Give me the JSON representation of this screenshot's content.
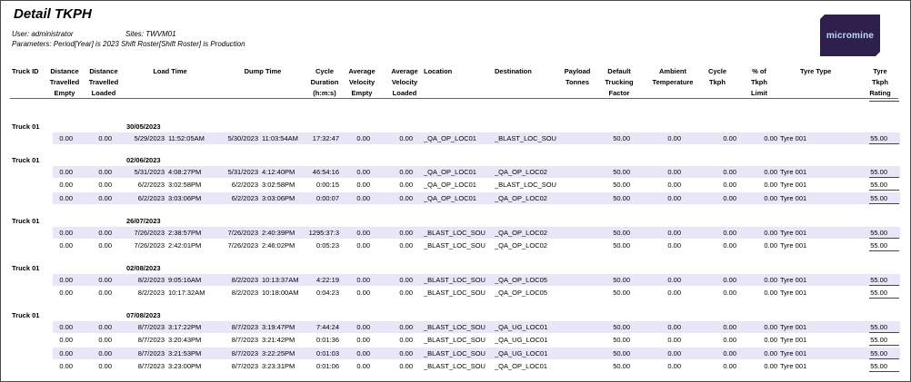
{
  "report": {
    "title": "Detail TKPH",
    "user": "User: administrator",
    "sites": "Sites: TWVM01",
    "parameters": "Parameters: Period[Year] is 2023 Shift Roster[Shift Roster] is Production",
    "logo_text": "micromine"
  },
  "columns": [
    {
      "key": "truck",
      "label": "Truck ID"
    },
    {
      "key": "dist_empty",
      "label": "Distance\nTravelled\nEmpty"
    },
    {
      "key": "dist_loaded",
      "label": "Distance\nTravelled\nLoaded"
    },
    {
      "key": "load_time",
      "label": "Load Time"
    },
    {
      "key": "dump_time",
      "label": "Dump Time"
    },
    {
      "key": "cycle_duration",
      "label": "Cycle\nDuration\n(h:m:s)"
    },
    {
      "key": "avg_vel_empty",
      "label": "Average\nVelocity\nEmpty"
    },
    {
      "key": "avg_vel_loaded",
      "label": "Average\nVelocity\nLoaded"
    },
    {
      "key": "location",
      "label": "Location"
    },
    {
      "key": "destination",
      "label": "Destination"
    },
    {
      "key": "payload",
      "label": "Payload\nTonnes"
    },
    {
      "key": "default_factor",
      "label": "Default\nTrucking\nFactor"
    },
    {
      "key": "ambient",
      "label": "Ambient\nTemperature"
    },
    {
      "key": "cycle_tkph",
      "label": "Cycle\nTkph"
    },
    {
      "key": "pct_limit",
      "label": "% of\nTkph\nLimit"
    },
    {
      "key": "tyre_type",
      "label": "Tyre Type"
    },
    {
      "key": "tyre_rating",
      "label": "Tyre\nTkph\nRating"
    }
  ],
  "groups": [
    {
      "truck": "Truck 01",
      "date": "30/05/2023",
      "rows": [
        {
          "de": "0.00",
          "dl": "0.00",
          "ld": "5/29/2023",
          "lt": "11:52:05AM",
          "dd": "5/30/2023",
          "dt": "11:03:54AM",
          "cd": "17:32:47",
          "ve": "0.00",
          "vl": "0.00",
          "loc": "_QA_OP_LOC01",
          "dest": "_BLAST_LOC_SOU",
          "pt": "",
          "tf": "50.00",
          "at": "0.00",
          "ct": "0.00",
          "pl": "0.00",
          "tt": "Tyre 001",
          "tr": "55.00"
        }
      ]
    },
    {
      "truck": "Truck 01",
      "date": "02/06/2023",
      "rows": [
        {
          "de": "0.00",
          "dl": "0.00",
          "ld": "5/31/2023",
          "lt": "4:08:27PM",
          "dd": "5/31/2023",
          "dt": "4:12:40PM",
          "cd": "46:54:16",
          "ve": "0.00",
          "vl": "0.00",
          "loc": "_QA_OP_LOC01",
          "dest": "_QA_OP_LOC02",
          "pt": "",
          "tf": "50.00",
          "at": "0.00",
          "ct": "0.00",
          "pl": "0.00",
          "tt": "Tyre 001",
          "tr": "55.00"
        },
        {
          "de": "0.00",
          "dl": "0.00",
          "ld": "6/2/2023",
          "lt": "3:02:58PM",
          "dd": "6/2/2023",
          "dt": "3:02:58PM",
          "cd": "0:00:15",
          "ve": "0.00",
          "vl": "0.00",
          "loc": "_QA_OP_LOC01",
          "dest": "_BLAST_LOC_SOU",
          "pt": "",
          "tf": "50.00",
          "at": "0.00",
          "ct": "0.00",
          "pl": "0.00",
          "tt": "Tyre 001",
          "tr": "55.00"
        },
        {
          "de": "0.00",
          "dl": "0.00",
          "ld": "6/2/2023",
          "lt": "3:03:06PM",
          "dd": "6/2/2023",
          "dt": "3:03:06PM",
          "cd": "0:00:07",
          "ve": "0.00",
          "vl": "0.00",
          "loc": "_QA_OP_LOC01",
          "dest": "_QA_OP_LOC02",
          "pt": "",
          "tf": "50.00",
          "at": "0.00",
          "ct": "0.00",
          "pl": "0.00",
          "tt": "Tyre 001",
          "tr": "55.00"
        }
      ]
    },
    {
      "truck": "Truck 01",
      "date": "26/07/2023",
      "rows": [
        {
          "de": "0.00",
          "dl": "0.00",
          "ld": "7/26/2023",
          "lt": "2:38:57PM",
          "dd": "7/26/2023",
          "dt": "2:40:39PM",
          "cd": "1295:37:3",
          "ve": "0.00",
          "vl": "0.00",
          "loc": "_BLAST_LOC_SOU",
          "dest": "_QA_OP_LOC02",
          "pt": "",
          "tf": "50.00",
          "at": "0.00",
          "ct": "0.00",
          "pl": "0.00",
          "tt": "Tyre 001",
          "tr": "55.00"
        },
        {
          "de": "0.00",
          "dl": "0.00",
          "ld": "7/26/2023",
          "lt": "2:42:01PM",
          "dd": "7/26/2023",
          "dt": "2:46:02PM",
          "cd": "0:05:23",
          "ve": "0.00",
          "vl": "0.00",
          "loc": "_BLAST_LOC_SOU",
          "dest": "_QA_OP_LOC02",
          "pt": "",
          "tf": "50.00",
          "at": "0.00",
          "ct": "0.00",
          "pl": "0.00",
          "tt": "Tyre 001",
          "tr": "55.00"
        }
      ]
    },
    {
      "truck": "Truck 01",
      "date": "02/08/2023",
      "rows": [
        {
          "de": "0.00",
          "dl": "0.00",
          "ld": "8/2/2023",
          "lt": "9:05:16AM",
          "dd": "8/2/2023",
          "dt": "10:13:37AM",
          "cd": "4:22:19",
          "ve": "0.00",
          "vl": "0.00",
          "loc": "_BLAST_LOC_SOU",
          "dest": "_QA_OP_LOC05",
          "pt": "",
          "tf": "50.00",
          "at": "0.00",
          "ct": "0.00",
          "pl": "0.00",
          "tt": "Tyre 001",
          "tr": "55.00"
        },
        {
          "de": "0.00",
          "dl": "0.00",
          "ld": "8/2/2023",
          "lt": "10:17:32AM",
          "dd": "8/2/2023",
          "dt": "10:18:00AM",
          "cd": "0:04:23",
          "ve": "0.00",
          "vl": "0.00",
          "loc": "_BLAST_LOC_SOU",
          "dest": "_QA_OP_LOC05",
          "pt": "",
          "tf": "50.00",
          "at": "0.00",
          "ct": "0.00",
          "pl": "0.00",
          "tt": "Tyre 001",
          "tr": "55.00"
        }
      ]
    },
    {
      "truck": "Truck 01",
      "date": "07/08/2023",
      "rows": [
        {
          "de": "0.00",
          "dl": "0.00",
          "ld": "8/7/2023",
          "lt": "3:17:22PM",
          "dd": "8/7/2023",
          "dt": "3:19:47PM",
          "cd": "7:44:24",
          "ve": "0.00",
          "vl": "0.00",
          "loc": "_BLAST_LOC_SOU",
          "dest": "_QA_UG_LOC01",
          "pt": "",
          "tf": "50.00",
          "at": "0.00",
          "ct": "0.00",
          "pl": "0.00",
          "tt": "Tyre 001",
          "tr": "55.00"
        },
        {
          "de": "0.00",
          "dl": "0.00",
          "ld": "8/7/2023",
          "lt": "3:20:43PM",
          "dd": "8/7/2023",
          "dt": "3:21:42PM",
          "cd": "0:01:36",
          "ve": "0.00",
          "vl": "0.00",
          "loc": "_BLAST_LOC_SOU",
          "dest": "_QA_UG_LOC01",
          "pt": "",
          "tf": "50.00",
          "at": "0.00",
          "ct": "0.00",
          "pl": "0.00",
          "tt": "Tyre 001",
          "tr": "55.00"
        },
        {
          "de": "0.00",
          "dl": "0.00",
          "ld": "8/7/2023",
          "lt": "3:21:53PM",
          "dd": "8/7/2023",
          "dt": "3:22:25PM",
          "cd": "0:01:03",
          "ve": "0.00",
          "vl": "0.00",
          "loc": "_BLAST_LOC_SOU",
          "dest": "_QA_UG_LOC01",
          "pt": "",
          "tf": "50.00",
          "at": "0.00",
          "ct": "0.00",
          "pl": "0.00",
          "tt": "Tyre 001",
          "tr": "55.00"
        },
        {
          "de": "0.00",
          "dl": "0.00",
          "ld": "8/7/2023",
          "lt": "3:23:00PM",
          "dd": "8/7/2023",
          "dt": "3:23:31PM",
          "cd": "0:01:06",
          "ve": "0.00",
          "vl": "0.00",
          "loc": "_BLAST_LOC_SOU",
          "dest": "_QA_OP_LOC01",
          "pt": "",
          "tf": "50.00",
          "at": "0.00",
          "ct": "0.00",
          "pl": "0.00",
          "tt": "Tyre 001",
          "tr": "55.00"
        }
      ]
    }
  ]
}
